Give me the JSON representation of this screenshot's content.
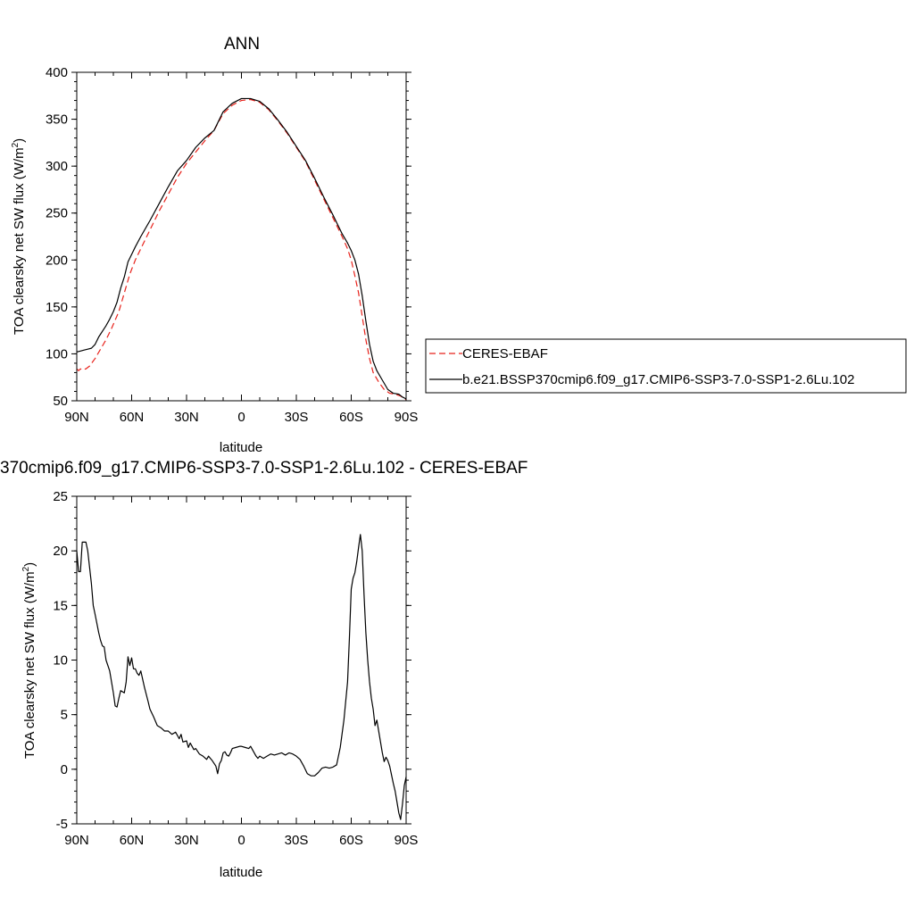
{
  "chart_data": [
    {
      "type": "line",
      "title": "ANN",
      "xlabel": "latitude",
      "ylabel": "TOA clearsky net SW flux",
      "yunit_base": "W/m",
      "yunit_exp": "2",
      "xticks": [
        "90N",
        "60N",
        "30N",
        "0",
        "30S",
        "60S",
        "90S"
      ],
      "xtick_values": [
        90,
        60,
        30,
        0,
        -30,
        -60,
        -90
      ],
      "xlim": [
        90,
        -90
      ],
      "ylim": [
        50,
        400
      ],
      "yticks": [
        50,
        100,
        150,
        200,
        250,
        300,
        350,
        400
      ],
      "legend_placement": "right",
      "series": [
        {
          "name": "CERES-EBAF",
          "color": "#e8221b",
          "dash": "dashed",
          "points": [
            [
              90,
              84
            ],
            [
              89,
              82
            ],
            [
              88,
              84
            ],
            [
              87,
              83
            ],
            [
              85,
              84
            ],
            [
              83,
              87
            ],
            [
              80,
              95
            ],
            [
              77,
              105
            ],
            [
              74,
              115
            ],
            [
              71,
              127
            ],
            [
              67,
              145
            ],
            [
              64,
              165
            ],
            [
              61,
              185
            ],
            [
              58,
              200
            ],
            [
              55,
              212
            ],
            [
              50,
              232
            ],
            [
              45,
              252
            ],
            [
              40,
              270
            ],
            [
              35,
              288
            ],
            [
              30,
              303
            ],
            [
              25,
              315
            ],
            [
              20,
              327
            ],
            [
              15,
              338
            ],
            [
              10,
              356
            ],
            [
              5,
              365
            ],
            [
              0,
              370
            ],
            [
              -5,
              371
            ],
            [
              -10,
              368
            ],
            [
              -15,
              360
            ],
            [
              -20,
              348
            ],
            [
              -25,
              335
            ],
            [
              -30,
              320
            ],
            [
              -35,
              305
            ],
            [
              -40,
              285
            ],
            [
              -45,
              265
            ],
            [
              -50,
              245
            ],
            [
              -55,
              225
            ],
            [
              -58,
              212
            ],
            [
              -60,
              200
            ],
            [
              -62,
              183
            ],
            [
              -64,
              165
            ],
            [
              -66,
              140
            ],
            [
              -68,
              115
            ],
            [
              -70,
              95
            ],
            [
              -72,
              80
            ],
            [
              -75,
              70
            ],
            [
              -78,
              62
            ],
            [
              -81,
              58
            ],
            [
              -84,
              57
            ],
            [
              -87,
              55
            ],
            [
              -90,
              51
            ]
          ]
        },
        {
          "name": "b.e21.BSSP370cmip6.f09_g17.CMIP6-SSP3-7.0-SSP1-2.6Lu.102",
          "color": "#000000",
          "dash": "solid",
          "points": [
            [
              90,
              102
            ],
            [
              88,
              103
            ],
            [
              86,
              104
            ],
            [
              84,
              105
            ],
            [
              82,
              106
            ],
            [
              80,
              110
            ],
            [
              78,
              118
            ],
            [
              76,
              124
            ],
            [
              74,
              130
            ],
            [
              72,
              137
            ],
            [
              70,
              145
            ],
            [
              68,
              155
            ],
            [
              66,
              170
            ],
            [
              64,
              182
            ],
            [
              62,
              198
            ],
            [
              60,
              206
            ],
            [
              58,
              214
            ],
            [
              55,
              225
            ],
            [
              50,
              242
            ],
            [
              45,
              260
            ],
            [
              40,
              278
            ],
            [
              35,
              295
            ],
            [
              30,
              306
            ],
            [
              25,
              320
            ],
            [
              20,
              330
            ],
            [
              15,
              338
            ],
            [
              10,
              358
            ],
            [
              5,
              367
            ],
            [
              0,
              372
            ],
            [
              -5,
              372
            ],
            [
              -10,
              369
            ],
            [
              -15,
              361
            ],
            [
              -20,
              349
            ],
            [
              -25,
              336
            ],
            [
              -30,
              321
            ],
            [
              -35,
              306
            ],
            [
              -40,
              287
            ],
            [
              -45,
              267
            ],
            [
              -50,
              248
            ],
            [
              -55,
              228
            ],
            [
              -58,
              218
            ],
            [
              -60,
              210
            ],
            [
              -62,
              200
            ],
            [
              -64,
              185
            ],
            [
              -66,
              162
            ],
            [
              -68,
              135
            ],
            [
              -70,
              110
            ],
            [
              -72,
              92
            ],
            [
              -74,
              82
            ],
            [
              -77,
              72
            ],
            [
              -80,
              62
            ],
            [
              -83,
              58
            ],
            [
              -86,
              57
            ],
            [
              -88,
              54
            ],
            [
              -90,
              52
            ]
          ]
        }
      ]
    },
    {
      "type": "line",
      "title": "370cmip6.f09_g17.CMIP6-SSP3-7.0-SSP1-2.6Lu.102 - CERES-EBAF",
      "xlabel": "latitude",
      "ylabel": "TOA clearsky net SW flux",
      "yunit_base": "W/m",
      "yunit_exp": "2",
      "xticks": [
        "90N",
        "60N",
        "30N",
        "0",
        "30S",
        "60S",
        "90S"
      ],
      "xtick_values": [
        90,
        60,
        30,
        0,
        -30,
        -60,
        -90
      ],
      "xlim": [
        90,
        -90
      ],
      "ylim": [
        -5,
        25
      ],
      "yticks": [
        -5,
        0,
        5,
        10,
        15,
        20,
        25
      ],
      "series": [
        {
          "color": "#000000",
          "dash": "solid",
          "points": [
            [
              90,
              20
            ],
            [
              89,
              18.1
            ],
            [
              88,
              18.1
            ],
            [
              87,
              20.8
            ],
            [
              85,
              20.8
            ],
            [
              84,
              20
            ],
            [
              82,
              17
            ],
            [
              81,
              15
            ],
            [
              80,
              14.2
            ],
            [
              78,
              12.5
            ],
            [
              77,
              11.8
            ],
            [
              76,
              11.3
            ],
            [
              75,
              11.2
            ],
            [
              74,
              10
            ],
            [
              72,
              9
            ],
            [
              71,
              8
            ],
            [
              70,
              7
            ],
            [
              69,
              5.8
            ],
            [
              68,
              5.7
            ],
            [
              67,
              6.5
            ],
            [
              66,
              7.2
            ],
            [
              64,
              7.0
            ],
            [
              63,
              8
            ],
            [
              62,
              10.3
            ],
            [
              61,
              9.5
            ],
            [
              60,
              10.2
            ],
            [
              59,
              9.2
            ],
            [
              58,
              9.2
            ],
            [
              57,
              8.8
            ],
            [
              56,
              8.6
            ],
            [
              55,
              9.0
            ],
            [
              53,
              7.5
            ],
            [
              51,
              6.2
            ],
            [
              50,
              5.5
            ],
            [
              48,
              4.8
            ],
            [
              46,
              4.0
            ],
            [
              44,
              3.8
            ],
            [
              42,
              3.5
            ],
            [
              40,
              3.5
            ],
            [
              38,
              3.2
            ],
            [
              36,
              3.4
            ],
            [
              34,
              2.8
            ],
            [
              33,
              3.2
            ],
            [
              32,
              2.5
            ],
            [
              30,
              2.6
            ],
            [
              29,
              2.0
            ],
            [
              28,
              2.4
            ],
            [
              26,
              1.8
            ],
            [
              25,
              1.9
            ],
            [
              23,
              1.4
            ],
            [
              21,
              1.2
            ],
            [
              19,
              0.9
            ],
            [
              18,
              1.2
            ],
            [
              17,
              1.0
            ],
            [
              16,
              0.8
            ],
            [
              14,
              0.3
            ],
            [
              13,
              -0.4
            ],
            [
              12,
              0.5
            ],
            [
              11,
              0.8
            ],
            [
              10,
              1.5
            ],
            [
              9,
              1.6
            ],
            [
              8,
              1.3
            ],
            [
              7,
              1.2
            ],
            [
              6,
              1.5
            ],
            [
              5,
              1.9
            ],
            [
              3,
              2.0
            ],
            [
              1,
              2.1
            ],
            [
              0,
              2.1
            ],
            [
              -2,
              2.0
            ],
            [
              -4,
              1.9
            ],
            [
              -5,
              2.1
            ],
            [
              -6,
              1.8
            ],
            [
              -8,
              1.2
            ],
            [
              -9,
              1.0
            ],
            [
              -10,
              1.2
            ],
            [
              -12,
              1.0
            ],
            [
              -14,
              1.2
            ],
            [
              -16,
              1.4
            ],
            [
              -18,
              1.3
            ],
            [
              -20,
              1.4
            ],
            [
              -22,
              1.5
            ],
            [
              -24,
              1.3
            ],
            [
              -26,
              1.5
            ],
            [
              -28,
              1.4
            ],
            [
              -30,
              1.2
            ],
            [
              -32,
              0.9
            ],
            [
              -34,
              0.3
            ],
            [
              -36,
              -0.4
            ],
            [
              -38,
              -0.6
            ],
            [
              -40,
              -0.6
            ],
            [
              -42,
              -0.3
            ],
            [
              -44,
              0.1
            ],
            [
              -46,
              0.2
            ],
            [
              -48,
              0.1
            ],
            [
              -50,
              0.2
            ],
            [
              -52,
              0.4
            ],
            [
              -54,
              2.0
            ],
            [
              -56,
              4.5
            ],
            [
              -58,
              8.0
            ],
            [
              -59,
              12
            ],
            [
              -60,
              16.5
            ],
            [
              -61,
              17.5
            ],
            [
              -62,
              18
            ],
            [
              -63,
              19
            ],
            [
              -64,
              20.3
            ],
            [
              -65,
              21.5
            ],
            [
              -66,
              20
            ],
            [
              -67,
              16
            ],
            [
              -68,
              12.5
            ],
            [
              -69,
              10
            ],
            [
              -70,
              8
            ],
            [
              -71,
              6.5
            ],
            [
              -72,
              5.5
            ],
            [
              -73,
              4.0
            ],
            [
              -74,
              4.5
            ],
            [
              -75,
              3.5
            ],
            [
              -76,
              2.5
            ],
            [
              -77,
              1.5
            ],
            [
              -78,
              0.7
            ],
            [
              -79,
              1.1
            ],
            [
              -80,
              0.8
            ],
            [
              -81,
              0.3
            ],
            [
              -82,
              -0.5
            ],
            [
              -83,
              -1.3
            ],
            [
              -84,
              -2
            ],
            [
              -85,
              -3
            ],
            [
              -86,
              -4
            ],
            [
              -87,
              -4.6
            ],
            [
              -88,
              -3.2
            ],
            [
              -89,
              -1.5
            ],
            [
              -90,
              -0.7
            ]
          ]
        }
      ]
    }
  ]
}
